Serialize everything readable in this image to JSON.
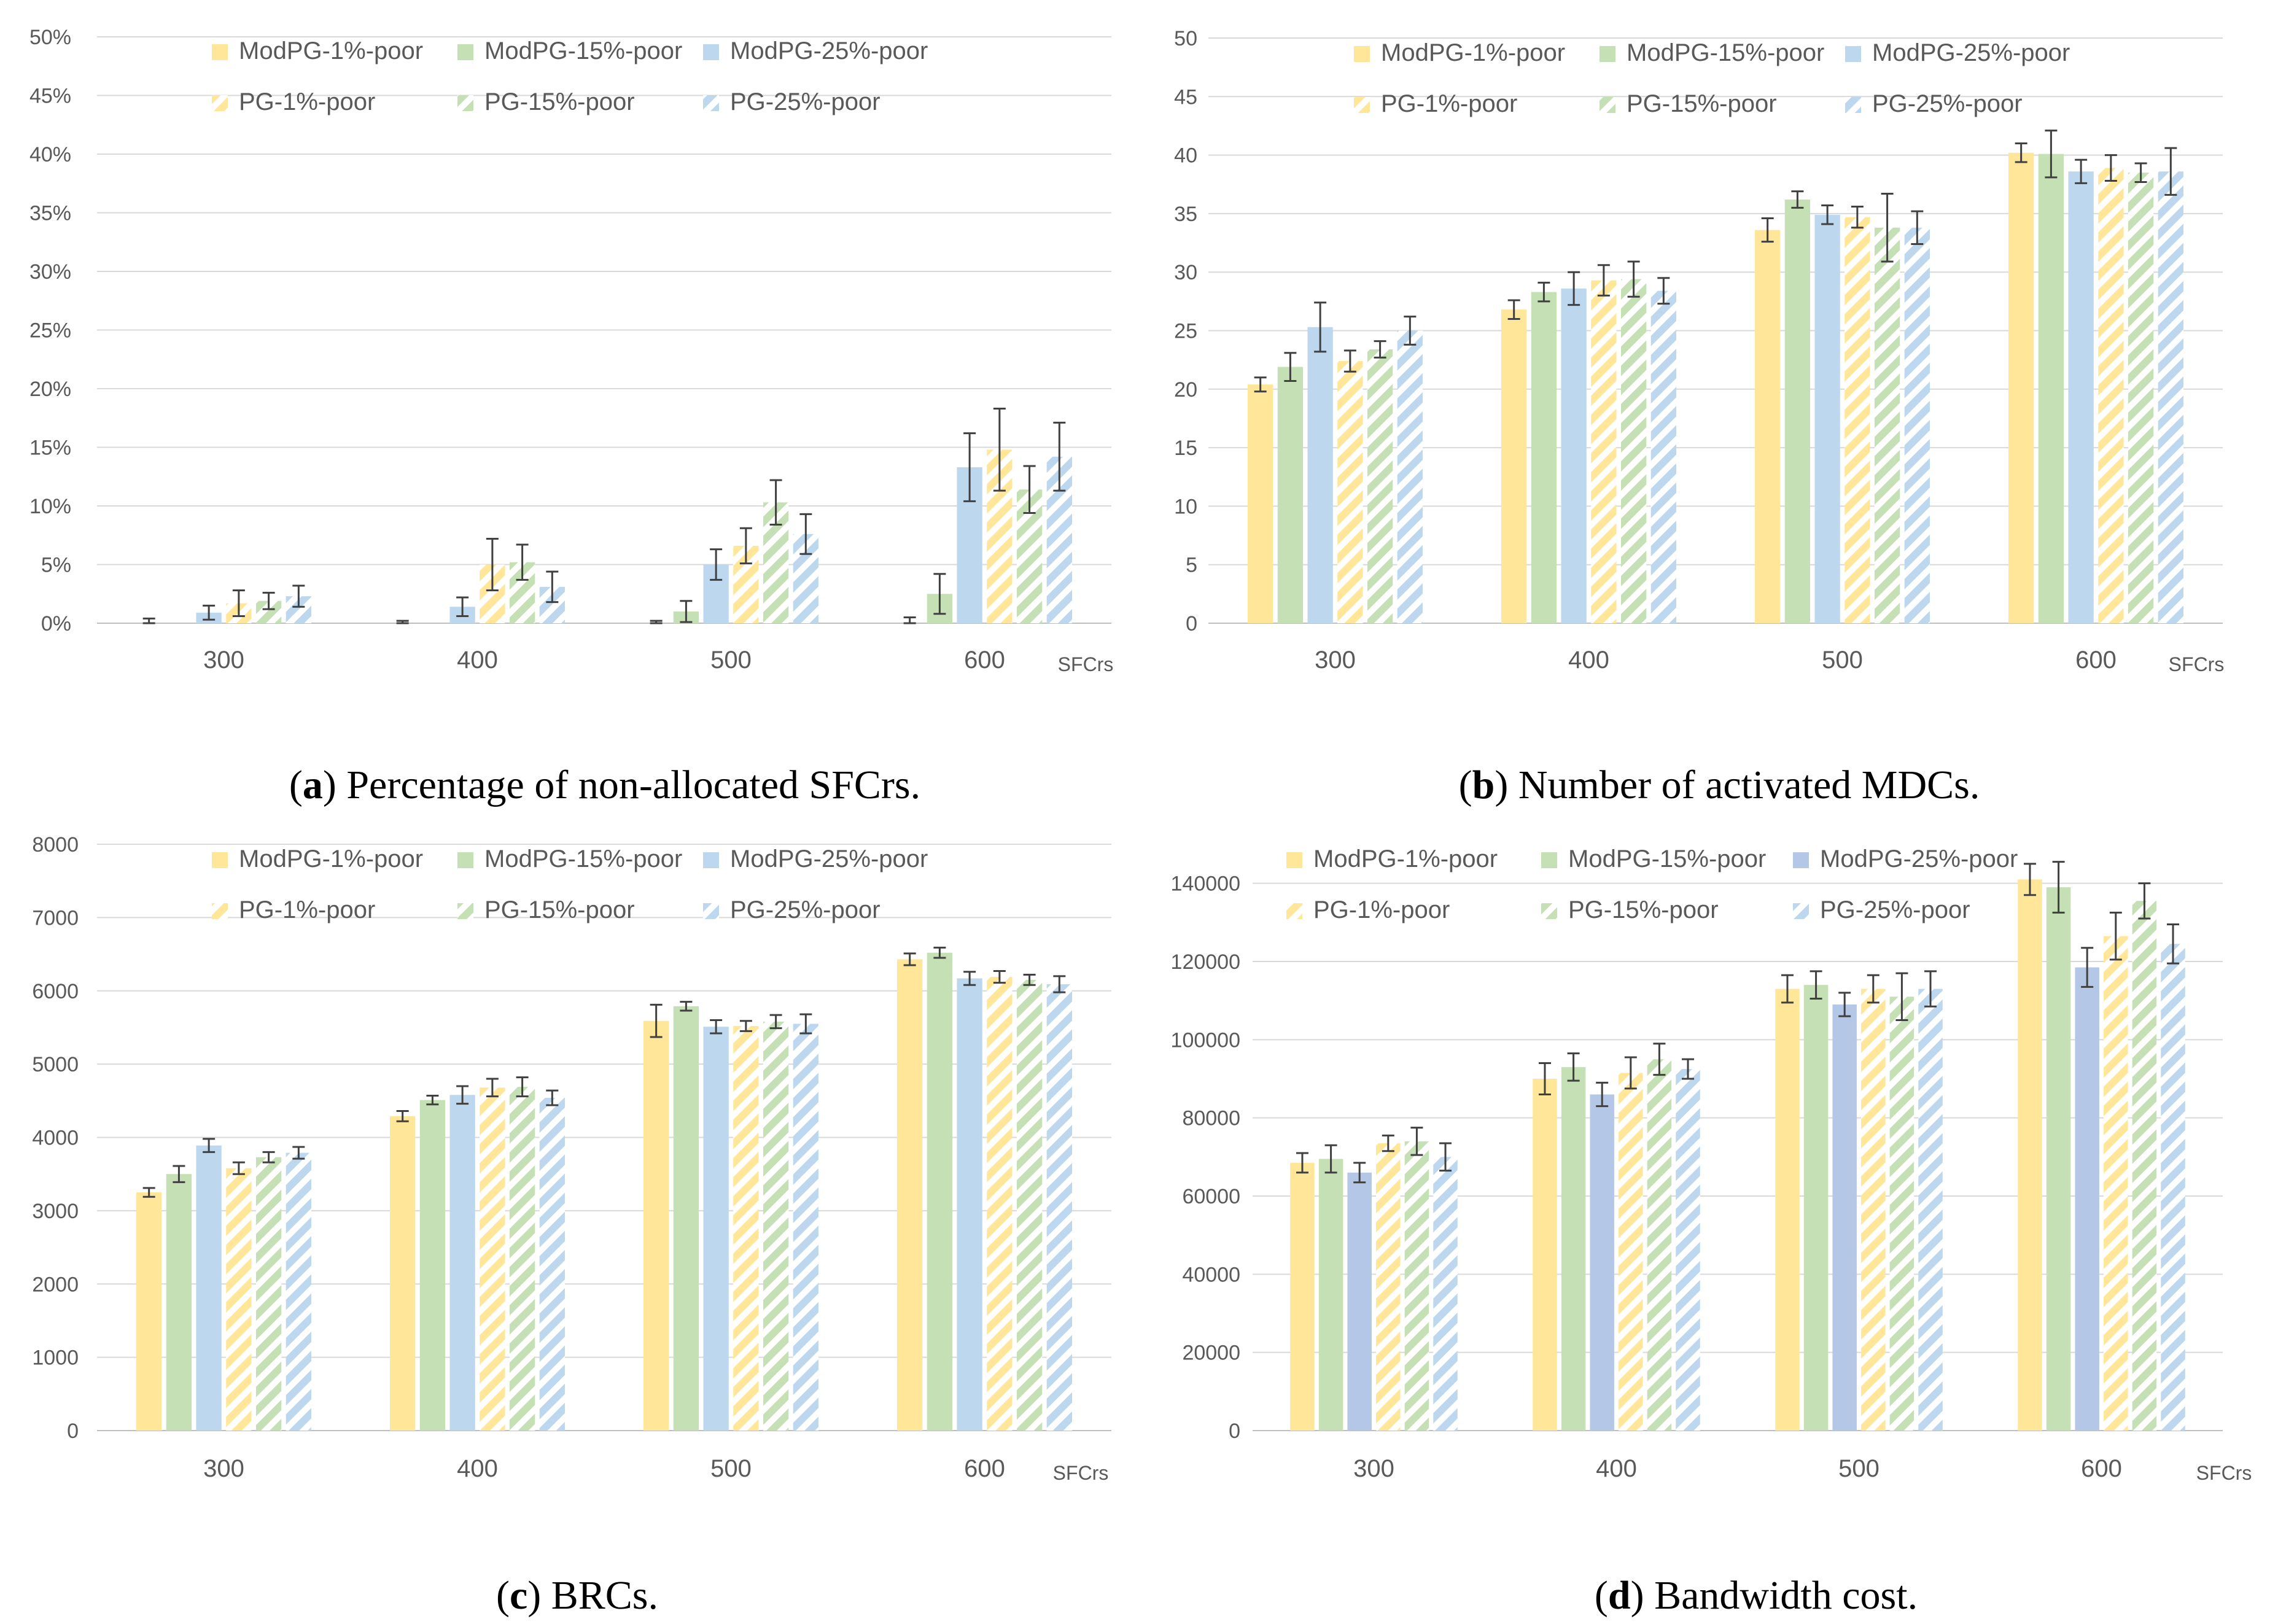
{
  "figure": {
    "series_names": [
      "ModPG-1%-poor",
      "ModPG-15%-poor",
      "ModPG-25%-poor",
      "PG-1%-poor",
      "PG-15%-poor",
      "PG-25%-poor"
    ]
  },
  "chart_data": [
    {
      "id": "a",
      "type": "bar",
      "caption_label": "a",
      "caption_text": "Percentage of non-allocated SFCrs.",
      "categories": [
        "300",
        "400",
        "500",
        "600"
      ],
      "category_axis_label": "SFCrs",
      "ylim": [
        0,
        50
      ],
      "yticks": [
        0,
        5,
        10,
        15,
        20,
        25,
        30,
        35,
        40,
        45,
        50
      ],
      "ytick_labels": [
        "0%",
        "5%",
        "10%",
        "15%",
        "20%",
        "25%",
        "30%",
        "35%",
        "40%",
        "45%",
        "50%"
      ],
      "grid": true,
      "legend_position": "top",
      "colors": [
        "#FFE699",
        "#C5E0B4",
        "#BDD7EE",
        "#FFE699",
        "#C5E0B4",
        "#BDD7EE"
      ],
      "series": [
        {
          "name": "ModPG-1%-poor",
          "values": [
            0,
            0,
            0,
            0
          ],
          "errors": [
            0.4,
            0.2,
            0.2,
            0.5
          ]
        },
        {
          "name": "ModPG-15%-poor",
          "values": [
            0,
            0,
            1.0,
            2.5
          ],
          "errors": [
            0,
            0,
            0.9,
            1.7
          ]
        },
        {
          "name": "ModPG-25%-poor",
          "values": [
            0.9,
            1.4,
            5.0,
            13.3
          ],
          "errors": [
            0.6,
            0.8,
            1.3,
            2.9
          ]
        },
        {
          "name": "PG-1%-poor",
          "values": [
            1.7,
            5.0,
            6.6,
            14.8
          ],
          "errors": [
            1.1,
            2.2,
            1.5,
            3.5
          ]
        },
        {
          "name": "PG-15%-poor",
          "values": [
            1.9,
            5.2,
            10.3,
            11.4
          ],
          "errors": [
            0.7,
            1.5,
            1.9,
            2.0
          ]
        },
        {
          "name": "PG-25%-poor",
          "values": [
            2.3,
            3.1,
            7.6,
            14.2
          ],
          "errors": [
            0.9,
            1.3,
            1.7,
            2.9
          ]
        }
      ]
    },
    {
      "id": "b",
      "type": "bar",
      "caption_label": "b",
      "caption_text": "Number of activated MDCs.",
      "categories": [
        "300",
        "400",
        "500",
        "600"
      ],
      "category_axis_label": "SFCrs",
      "ylim": [
        0,
        50
      ],
      "yticks": [
        0,
        5,
        10,
        15,
        20,
        25,
        30,
        35,
        40,
        45,
        50
      ],
      "ytick_labels": [
        "0",
        "5",
        "10",
        "15",
        "20",
        "25",
        "30",
        "35",
        "40",
        "45",
        "50"
      ],
      "grid": true,
      "legend_position": "top",
      "colors": [
        "#FFE699",
        "#C5E0B4",
        "#BDD7EE",
        "#FFE699",
        "#C5E0B4",
        "#BDD7EE"
      ],
      "series": [
        {
          "name": "ModPG-1%-poor",
          "values": [
            20.4,
            26.8,
            33.6,
            40.2
          ],
          "errors": [
            0.6,
            0.8,
            1.0,
            0.8
          ]
        },
        {
          "name": "ModPG-15%-poor",
          "values": [
            21.9,
            28.3,
            36.2,
            40.1
          ],
          "errors": [
            1.2,
            0.8,
            0.7,
            2.0
          ]
        },
        {
          "name": "ModPG-25%-poor",
          "values": [
            25.3,
            28.6,
            34.9,
            38.6
          ],
          "errors": [
            2.1,
            1.4,
            0.8,
            1.0
          ]
        },
        {
          "name": "PG-1%-poor",
          "values": [
            22.4,
            29.3,
            34.7,
            38.9
          ],
          "errors": [
            0.9,
            1.3,
            0.9,
            1.1
          ]
        },
        {
          "name": "PG-15%-poor",
          "values": [
            23.4,
            29.4,
            33.8,
            38.5
          ],
          "errors": [
            0.7,
            1.5,
            2.9,
            0.8
          ]
        },
        {
          "name": "PG-25%-poor",
          "values": [
            25.0,
            28.4,
            33.8,
            38.6
          ],
          "errors": [
            1.2,
            1.1,
            1.4,
            2.0
          ]
        }
      ]
    },
    {
      "id": "c",
      "type": "bar",
      "caption_label": "c",
      "caption_text": "BRCs.",
      "categories": [
        "300",
        "400",
        "500",
        "600"
      ],
      "category_axis_label": "SFCrs",
      "ylim": [
        0,
        8000
      ],
      "yticks": [
        0,
        1000,
        2000,
        3000,
        4000,
        5000,
        6000,
        7000,
        8000
      ],
      "ytick_labels": [
        "0",
        "1000",
        "2000",
        "3000",
        "4000",
        "5000",
        "6000",
        "7000",
        "8000"
      ],
      "grid": true,
      "legend_position": "top",
      "colors": [
        "#FFE699",
        "#C5E0B4",
        "#BDD7EE",
        "#FFE699",
        "#C5E0B4",
        "#BDD7EE"
      ],
      "series": [
        {
          "name": "ModPG-1%-poor",
          "values": [
            3250,
            4290,
            5590,
            6430
          ],
          "errors": [
            60,
            70,
            220,
            80
          ]
        },
        {
          "name": "ModPG-15%-poor",
          "values": [
            3500,
            4510,
            5790,
            6520
          ],
          "errors": [
            110,
            60,
            60,
            70
          ]
        },
        {
          "name": "ModPG-25%-poor",
          "values": [
            3890,
            4580,
            5510,
            6170
          ],
          "errors": [
            90,
            120,
            90,
            90
          ]
        },
        {
          "name": "PG-1%-poor",
          "values": [
            3580,
            4680,
            5520,
            6190
          ],
          "errors": [
            80,
            120,
            70,
            80
          ]
        },
        {
          "name": "PG-15%-poor",
          "values": [
            3730,
            4690,
            5580,
            6150
          ],
          "errors": [
            70,
            130,
            90,
            70
          ]
        },
        {
          "name": "PG-25%-poor",
          "values": [
            3790,
            4540,
            5550,
            6090
          ],
          "errors": [
            80,
            100,
            130,
            110
          ]
        }
      ]
    },
    {
      "id": "d",
      "type": "bar",
      "caption_label": "d",
      "caption_text": "Bandwidth cost.",
      "categories": [
        "300",
        "400",
        "500",
        "600"
      ],
      "category_axis_label": "SFCrs",
      "ylim": [
        0,
        150000
      ],
      "yticks": [
        0,
        20000,
        40000,
        60000,
        80000,
        100000,
        120000,
        140000
      ],
      "ytick_labels": [
        "0",
        "20000",
        "40000",
        "60000",
        "80000",
        "100000",
        "120000",
        "140000"
      ],
      "grid": true,
      "legend_position": "top",
      "colors": [
        "#FFE699",
        "#C5E0B4",
        "#B4C7E7",
        "#FFE699",
        "#C5E0B4",
        "#BDD7EE"
      ],
      "series": [
        {
          "name": "ModPG-1%-poor",
          "values": [
            68500,
            90000,
            113000,
            141000
          ],
          "errors": [
            2500,
            4000,
            3500,
            4000
          ]
        },
        {
          "name": "ModPG-15%-poor",
          "values": [
            69500,
            93000,
            114000,
            139000
          ],
          "errors": [
            3500,
            3500,
            3500,
            6500
          ]
        },
        {
          "name": "ModPG-25%-poor",
          "values": [
            66000,
            86000,
            109000,
            118500
          ],
          "errors": [
            2500,
            3000,
            3000,
            5000
          ]
        },
        {
          "name": "PG-1%-poor",
          "values": [
            73500,
            91500,
            113000,
            126500
          ],
          "errors": [
            2000,
            4000,
            3500,
            6000
          ]
        },
        {
          "name": "PG-15%-poor",
          "values": [
            74000,
            95000,
            111000,
            135500
          ],
          "errors": [
            3500,
            4000,
            6000,
            4500
          ]
        },
        {
          "name": "PG-25%-poor",
          "values": [
            70000,
            92500,
            113000,
            124500
          ],
          "errors": [
            3500,
            2500,
            4500,
            5000
          ]
        }
      ]
    }
  ]
}
